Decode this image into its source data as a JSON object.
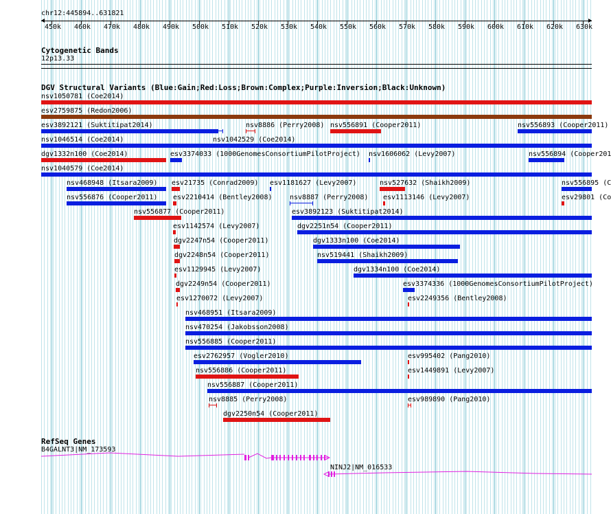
{
  "ruler": {
    "region": "chr12:445894..631821",
    "ticks": [
      "450k",
      "460k",
      "470k",
      "480k",
      "490k",
      "500k",
      "510k",
      "520k",
      "530k",
      "540k",
      "550k",
      "560k",
      "570k",
      "580k",
      "590k",
      "600k",
      "610k",
      "620k",
      "630k"
    ]
  },
  "cytoband": {
    "title": "Cytogenetic Bands",
    "band": "12p13.33"
  },
  "dgv": {
    "title": "DGV Structural Variants (Blue:Gain;Red:Loss;Brown:Complex;Purple:Inversion;Black:Unknown)",
    "colors": {
      "gain": "#0a1ee0",
      "loss": "#e01414",
      "complex": "#8b3a0e"
    },
    "features": [
      {
        "label": "nsv1050781 (Coe2014)"
      },
      {
        "label": "esv2759875 (Redon2006)"
      },
      {
        "label": "esv3892121 (Suktitipat2014)"
      },
      {
        "label": "nsv8886 (Perry2008)"
      },
      {
        "label": "nsv556891 (Cooper2011)"
      },
      {
        "label": "nsv556893 (Cooper2011)"
      },
      {
        "label": "nsv1046514 (Coe2014)"
      },
      {
        "label": "nsv1042529 (Coe2014)"
      },
      {
        "label": "dgv1332n100 (Coe2014)"
      },
      {
        "label": "esv3374033 (1000GenomesConsortiumPilotProject)"
      },
      {
        "label": "nsv1606062 (Levy2007)"
      },
      {
        "label": "nsv556894 (Cooper201"
      },
      {
        "label": "nsv1040579 (Coe2014)"
      },
      {
        "label": "nsv468948 (Itsara2009)"
      },
      {
        "label": "esv21735 (Conrad2009)"
      },
      {
        "label": "esv1181627 (Levy2007)"
      },
      {
        "label": "nsv527632 (Shaikh2009)"
      },
      {
        "label": "nsv556895 (Coo"
      },
      {
        "label": "nsv556876 (Cooper2011)"
      },
      {
        "label": "esv2210414 (Bentley2008)"
      },
      {
        "label": "nsv8887 (Perry2008)"
      },
      {
        "label": "esv1113146 (Levy2007)"
      },
      {
        "label": "esv29801 (Co"
      },
      {
        "label": "nsv556877 (Cooper2011)"
      },
      {
        "label": "esv3892123 (Suktitipat2014)"
      },
      {
        "label": "esv1142574 (Levy2007)"
      },
      {
        "label": "dgv2251n54 (Cooper2011)"
      },
      {
        "label": "dgv2247n54 (Cooper2011)"
      },
      {
        "label": "dgv1333n100 (Coe2014)"
      },
      {
        "label": "dgv2248n54 (Cooper2011)"
      },
      {
        "label": "nsv519441 (Shaikh2009)"
      },
      {
        "label": "esv1129945 (Levy2007)"
      },
      {
        "label": "dgv1334n100 (Coe2014)"
      },
      {
        "label": "dgv2249n54 (Cooper2011)"
      },
      {
        "label": "esv3374336 (1000GenomesConsortiumPilotProject)"
      },
      {
        "label": "esv1270072 (Levy2007)"
      },
      {
        "label": "esv2249356 (Bentley2008)"
      },
      {
        "label": "nsv468951 (Itsara2009)"
      },
      {
        "label": "nsv470254 (Jakobsson2008)"
      },
      {
        "label": "nsv556885 (Cooper2011)"
      },
      {
        "label": "esv2762957 (Vogler2010)"
      },
      {
        "label": "esv995402 (Pang2010)"
      },
      {
        "label": "nsv556886 (Cooper2011)"
      },
      {
        "label": "esv1449891 (Levy2007)"
      },
      {
        "label": "nsv556887 (Cooper2011)"
      },
      {
        "label": "nsv8885 (Perry2008)"
      },
      {
        "label": "esv989890 (Pang2010)"
      },
      {
        "label": "dgv2250n54 (Cooper2011)"
      }
    ]
  },
  "refseq": {
    "title": "RefSeq Genes",
    "color": "#e020e0",
    "genes": [
      {
        "label": "B4GALNT3|NM_173593"
      },
      {
        "label": "NINJ2|NM_016533"
      }
    ]
  }
}
